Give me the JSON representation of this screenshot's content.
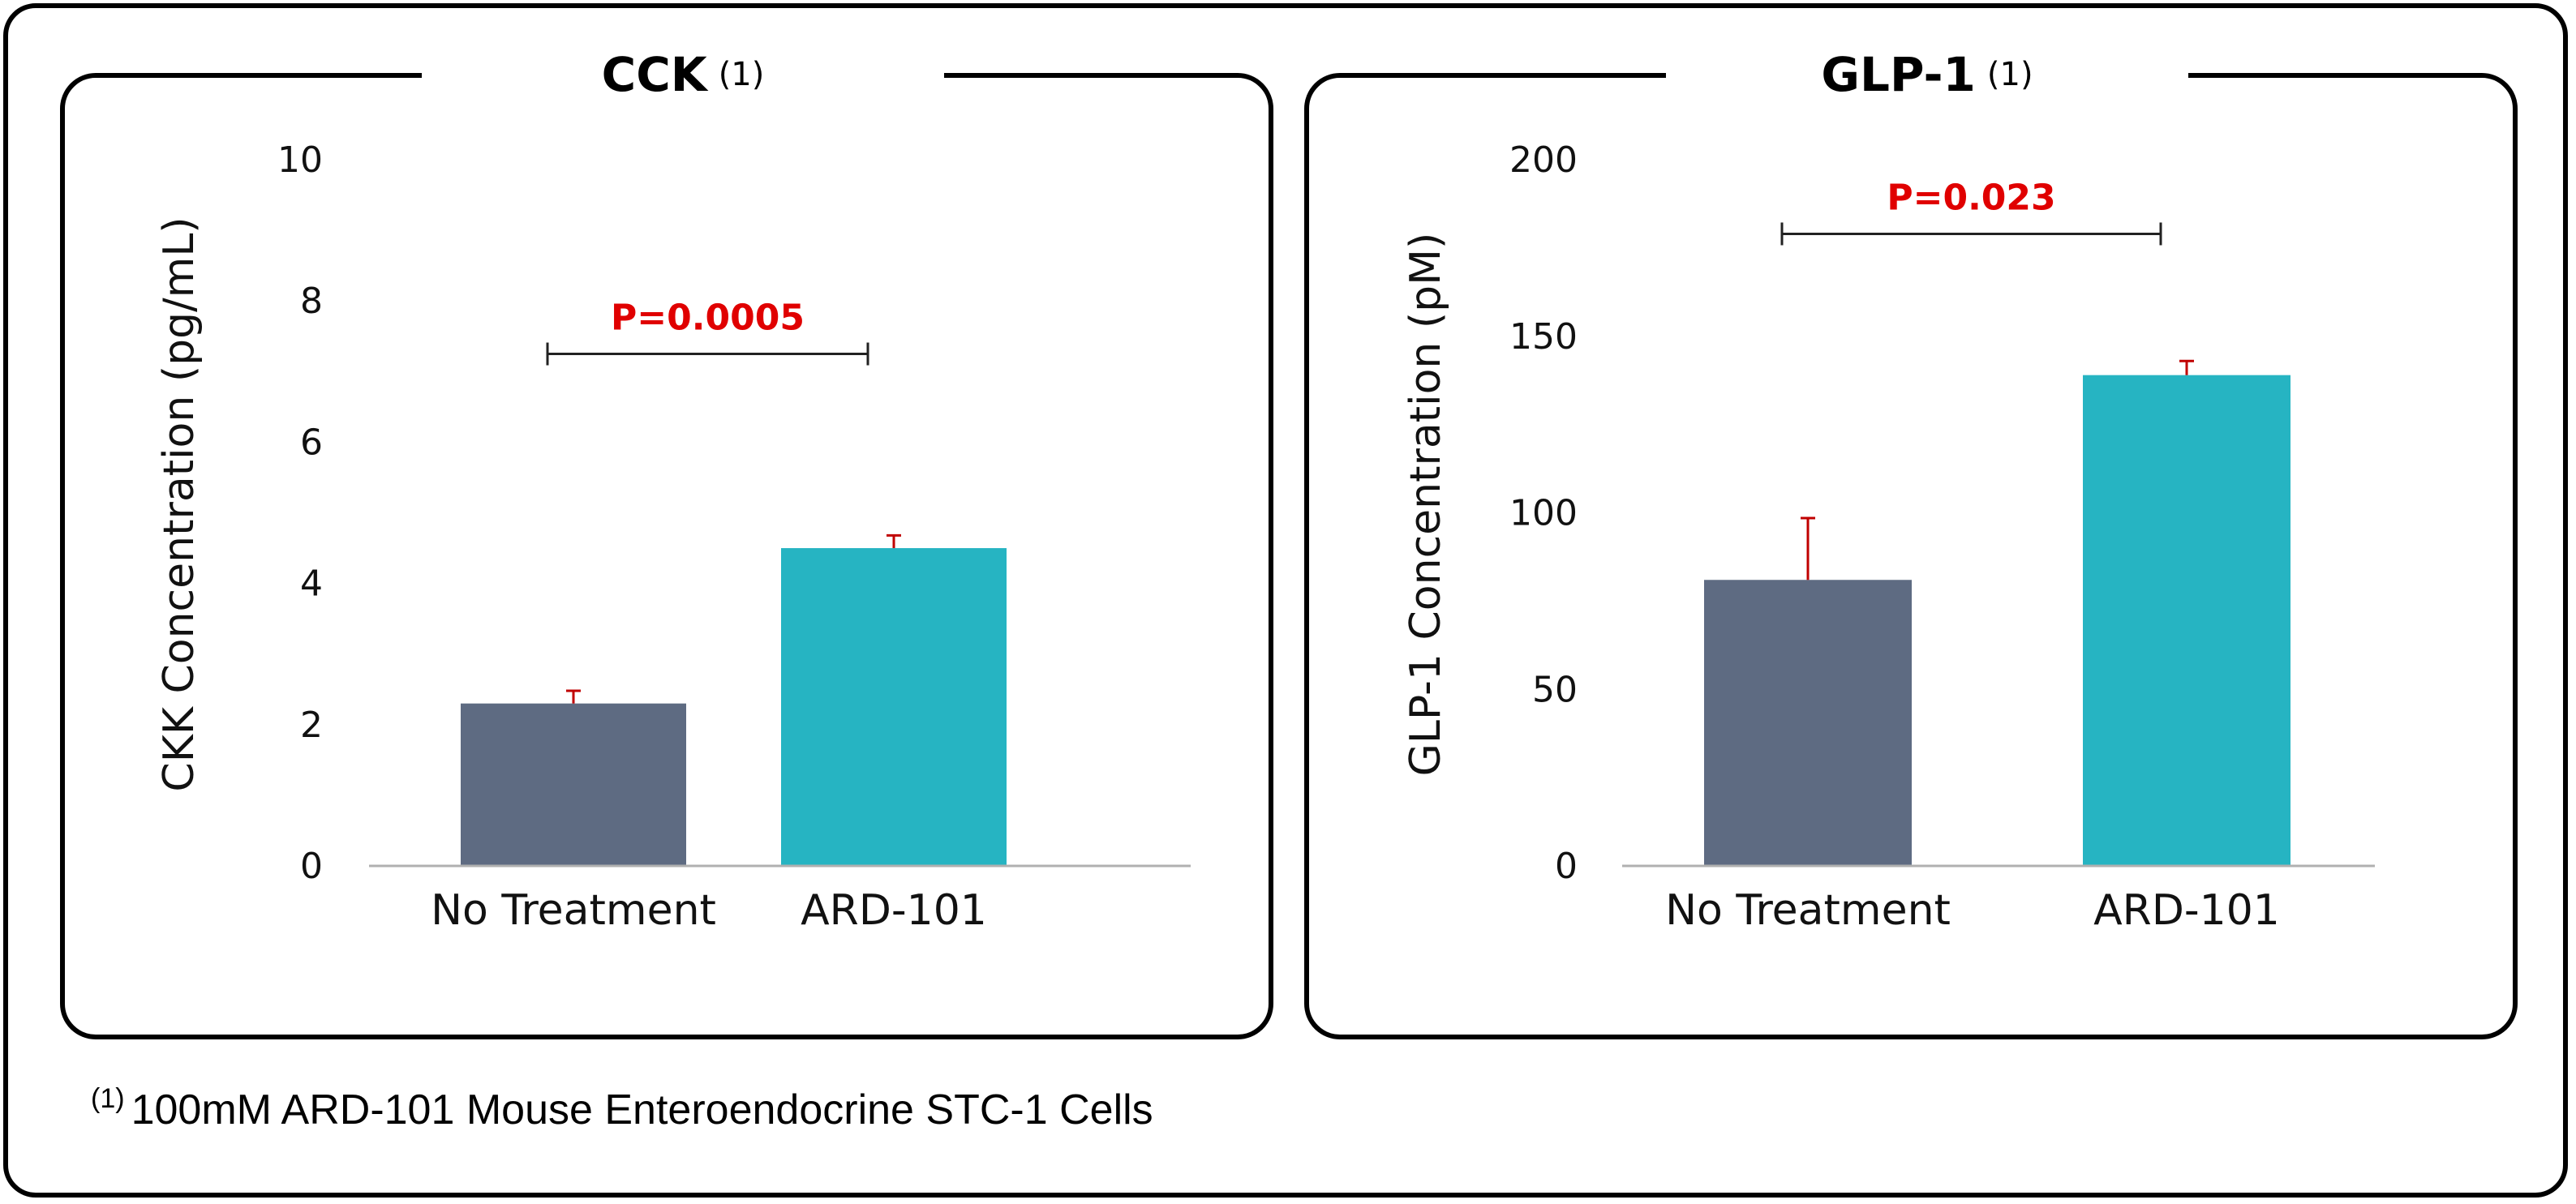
{
  "colors": {
    "no_treatment": "#5e6b82",
    "ard101": "#26b4c2",
    "error_bar": "#c00000",
    "pvalue": "#e00000",
    "axis": "#b0b0b0"
  },
  "chart_data": [
    {
      "type": "bar",
      "title": "CCK",
      "title_note": "(1)",
      "categories": [
        "No Treatment",
        "ARD-101"
      ],
      "values": [
        2.3,
        4.5
      ],
      "errors": [
        0.18,
        0.18
      ],
      "ylabel": "CKK Concentration (pg/mL)",
      "xlabel": "",
      "ylim": [
        0,
        10
      ],
      "yticks": [
        0,
        2,
        4,
        6,
        8,
        10
      ],
      "ytick_labels": [
        "0",
        "2",
        "4",
        "6",
        "8",
        "10"
      ],
      "grid": false,
      "significance": {
        "label": "P=0.0005",
        "between": [
          "No Treatment",
          "ARD-101"
        ],
        "level": 7.25
      }
    },
    {
      "type": "bar",
      "title": "GLP-1",
      "title_note": "(1)",
      "categories": [
        "No Treatment",
        "ARD-101"
      ],
      "values": [
        81,
        139
      ],
      "errors": [
        17.5,
        4
      ],
      "ylabel": "GLP-1 Concentration (pM)",
      "xlabel": "",
      "ylim": [
        0,
        200
      ],
      "yticks": [
        0,
        50,
        100,
        150,
        200
      ],
      "ytick_labels": [
        "0",
        "50",
        "100",
        "150",
        "200"
      ],
      "grid": false,
      "significance": {
        "label": "P=0.023",
        "between": [
          "No Treatment",
          "ARD-101"
        ],
        "level": 179
      }
    }
  ],
  "footnote": {
    "marker": "(1)",
    "text": "100mM ARD-101 Mouse Enteroendocrine STC-1 Cells"
  }
}
